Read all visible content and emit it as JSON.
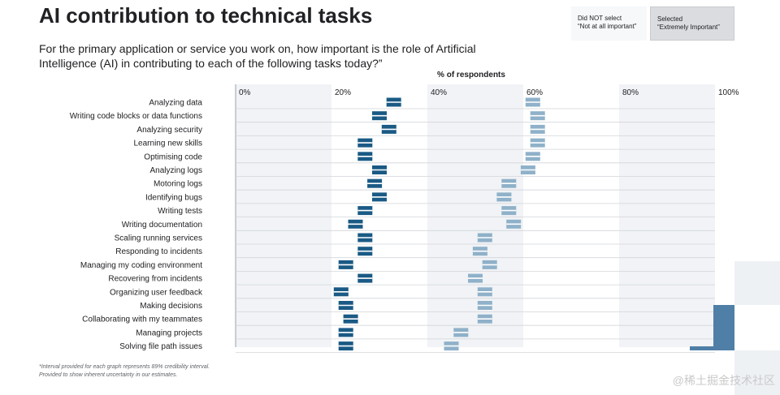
{
  "title": "AI contribution to technical tasks",
  "subtitle": "For the primary application or service you work on, how important is the role of Artificial Intelligence (AI) in contributing to each of the following tasks today?”",
  "legend": {
    "not_label_1": "Did NOT select",
    "not_label_2": "“Not at all important”",
    "sel_label_1": "Selected",
    "sel_label_2": "“Extremely Important”"
  },
  "footnote": {
    "line1": "*Interval provided for each graph represents 89% credibility interval.",
    "line2": "Provided to show inherent uncertainty in our estimates."
  },
  "watermark": "@稀土掘金技术社区",
  "colors": {
    "extremely_important": "#1a5a85",
    "not_not_important": "#8fb1c9",
    "band": "#f1f3f6"
  },
  "chart_data": {
    "type": "dot-interval",
    "xlabel": "% of respondents",
    "xlim": [
      0,
      100
    ],
    "ticks": [
      "0%",
      "20%",
      "40%",
      "60%",
      "80%",
      "100%"
    ],
    "categories": [
      "Analyzing data",
      "Writing code blocks or data functions",
      "Analyzing security",
      "Learning new skills",
      "Optimising code",
      "Analyzing logs",
      "Motoring logs",
      "Identifying bugs",
      "Writing tests",
      "Writing documentation",
      "Scaling running services",
      "Responding to incidents",
      "Managing my coding environment",
      "Recovering from incidents",
      "Organizing user feedback",
      "Making decisions",
      "Collaborating with my teammates",
      "Managing projects",
      "Solving file path issues"
    ],
    "series": [
      {
        "name": "Selected “Extremely Important”",
        "values": [
          33,
          30,
          32,
          27,
          27,
          30,
          29,
          30,
          27,
          25,
          27,
          27,
          23,
          27,
          22,
          23,
          24,
          23,
          23
        ]
      },
      {
        "name": "Did NOT select “Not at all important”",
        "values": [
          62,
          63,
          63,
          63,
          62,
          61,
          57,
          56,
          57,
          58,
          52,
          51,
          53,
          50,
          52,
          52,
          52,
          47,
          45
        ]
      }
    ]
  }
}
